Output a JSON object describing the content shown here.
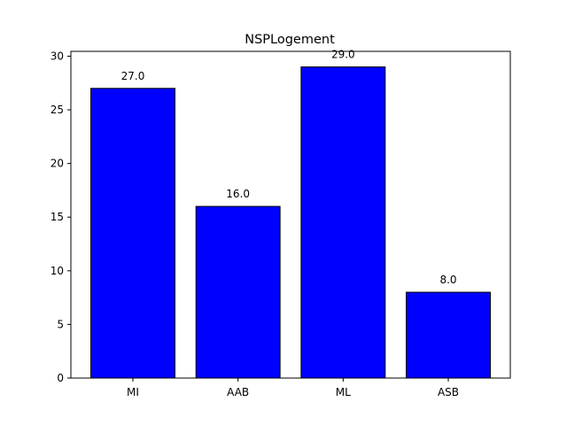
{
  "chart_data": {
    "type": "bar",
    "title": "NSPLogement",
    "xlabel": "",
    "ylabel": "",
    "categories": [
      "MI",
      "AAB",
      "ML",
      "ASB"
    ],
    "values": [
      27.0,
      16.0,
      29.0,
      8.0
    ],
    "value_labels": [
      "27.0",
      "16.0",
      "29.0",
      "8.0"
    ],
    "ylim": [
      0,
      30.45
    ],
    "yticks": [
      0,
      5,
      10,
      15,
      20,
      25,
      30
    ],
    "ytick_labels": [
      "0",
      "5",
      "10",
      "15",
      "20",
      "25",
      "30"
    ],
    "bar_color": "#0000ff",
    "edge_color": "#000000",
    "grid": false,
    "legend": "none"
  }
}
